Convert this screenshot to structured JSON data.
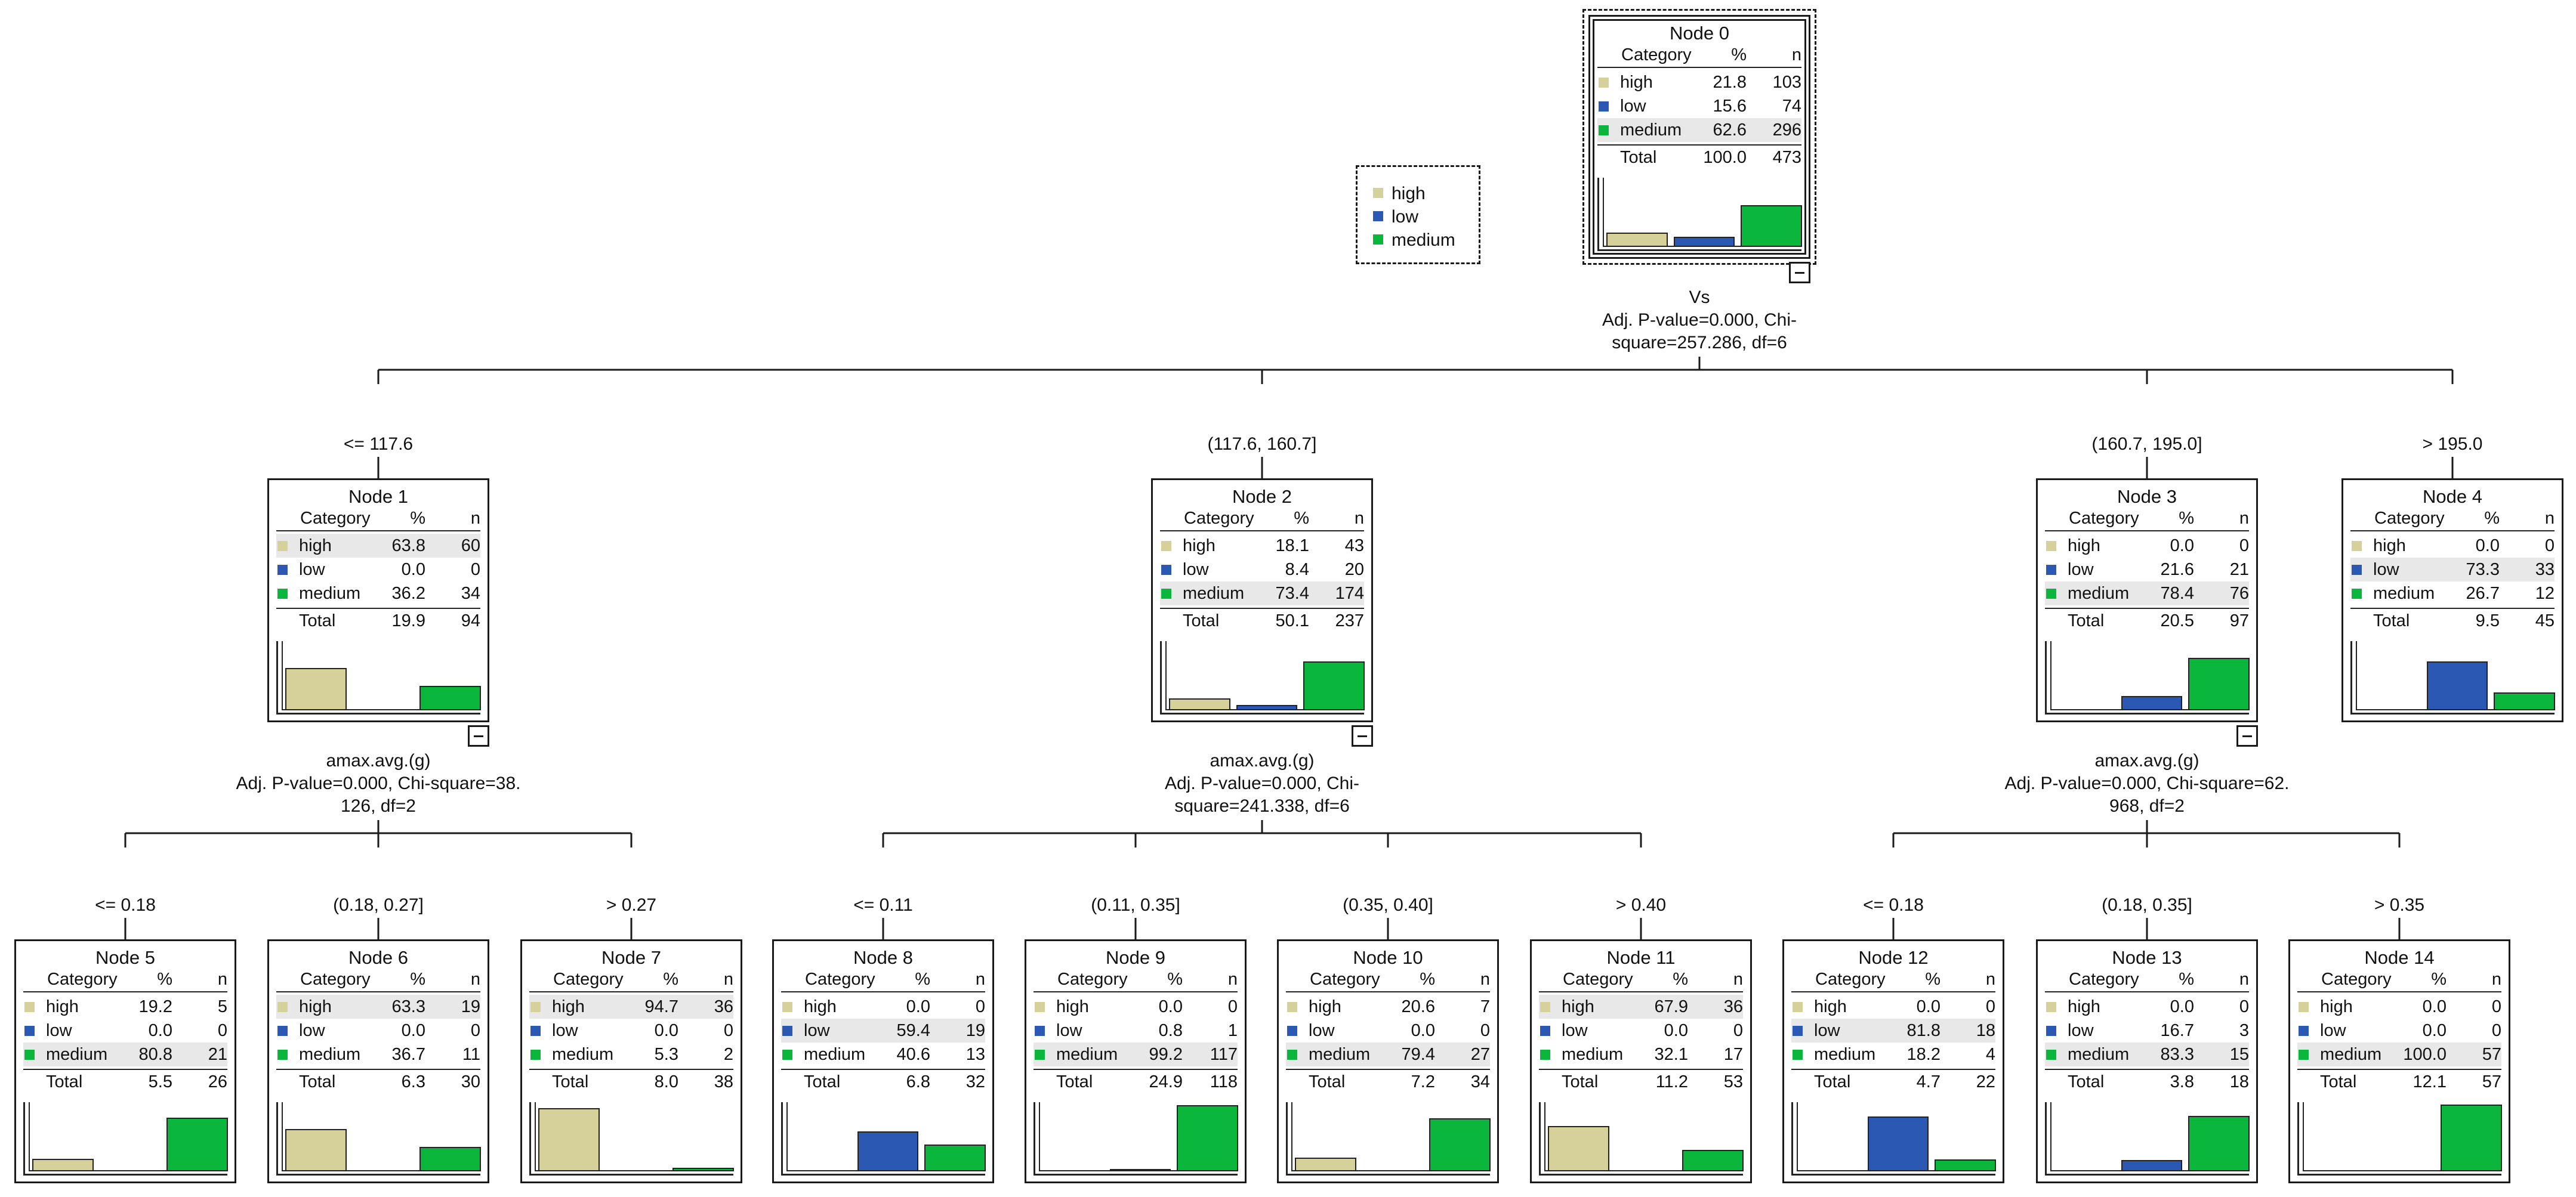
{
  "colors": {
    "high": "#d6d09a",
    "low": "#2b58b3",
    "medium": "#0bb63c"
  },
  "legend": {
    "items": [
      {
        "label": "high",
        "icon": "high-swatch-icon"
      },
      {
        "label": "low",
        "icon": "low-swatch-icon"
      },
      {
        "label": "medium",
        "icon": "medium-swatch-icon"
      }
    ]
  },
  "header": {
    "category": "Category",
    "percent": "%",
    "n": "n",
    "total": "Total"
  },
  "nodes": [
    {
      "id": 0,
      "title": "Node 0",
      "rows": [
        [
          "high",
          "21.8",
          "103"
        ],
        [
          "low",
          "15.6",
          "74"
        ],
        [
          "medium",
          "62.6",
          "296"
        ]
      ],
      "total": [
        "100.0",
        "473"
      ],
      "pct": [
        21.8,
        15.6,
        62.6
      ],
      "hl": 2,
      "split": [
        "Vs",
        "Adj. P-value=0.000, Chi-",
        "square=257.286, df=6"
      ]
    },
    {
      "id": 1,
      "title": "Node 1",
      "rows": [
        [
          "high",
          "63.8",
          "60"
        ],
        [
          "low",
          "0.0",
          "0"
        ],
        [
          "medium",
          "36.2",
          "34"
        ]
      ],
      "total": [
        "19.9",
        "94"
      ],
      "pct": [
        63.8,
        0.0,
        36.2
      ],
      "hl": 0,
      "branch": "<= 117.6",
      "split": [
        "amax.avg.(g)",
        "Adj. P-value=0.000, Chi-square=38.",
        "126, df=2"
      ]
    },
    {
      "id": 2,
      "title": "Node 2",
      "rows": [
        [
          "high",
          "18.1",
          "43"
        ],
        [
          "low",
          "8.4",
          "20"
        ],
        [
          "medium",
          "73.4",
          "174"
        ]
      ],
      "total": [
        "50.1",
        "237"
      ],
      "pct": [
        18.1,
        8.4,
        73.4
      ],
      "hl": 2,
      "branch": "(117.6, 160.7]",
      "split": [
        "amax.avg.(g)",
        "Adj. P-value=0.000, Chi-",
        "square=241.338, df=6"
      ]
    },
    {
      "id": 3,
      "title": "Node 3",
      "rows": [
        [
          "high",
          "0.0",
          "0"
        ],
        [
          "low",
          "21.6",
          "21"
        ],
        [
          "medium",
          "78.4",
          "76"
        ]
      ],
      "total": [
        "20.5",
        "97"
      ],
      "pct": [
        0.0,
        21.6,
        78.4
      ],
      "hl": 2,
      "branch": "(160.7, 195.0]",
      "split": [
        "amax.avg.(g)",
        "Adj. P-value=0.000, Chi-square=62.",
        "968, df=2"
      ]
    },
    {
      "id": 4,
      "title": "Node 4",
      "rows": [
        [
          "high",
          "0.0",
          "0"
        ],
        [
          "low",
          "73.3",
          "33"
        ],
        [
          "medium",
          "26.7",
          "12"
        ]
      ],
      "total": [
        "9.5",
        "45"
      ],
      "pct": [
        0.0,
        73.3,
        26.7
      ],
      "hl": 1,
      "branch": "> 195.0"
    },
    {
      "id": 5,
      "title": "Node 5",
      "rows": [
        [
          "high",
          "19.2",
          "5"
        ],
        [
          "low",
          "0.0",
          "0"
        ],
        [
          "medium",
          "80.8",
          "21"
        ]
      ],
      "total": [
        "5.5",
        "26"
      ],
      "pct": [
        19.2,
        0.0,
        80.8
      ],
      "hl": 2,
      "branch": "<= 0.18"
    },
    {
      "id": 6,
      "title": "Node 6",
      "rows": [
        [
          "high",
          "63.3",
          "19"
        ],
        [
          "low",
          "0.0",
          "0"
        ],
        [
          "medium",
          "36.7",
          "11"
        ]
      ],
      "total": [
        "6.3",
        "30"
      ],
      "pct": [
        63.3,
        0.0,
        36.7
      ],
      "hl": 0,
      "branch": "(0.18, 0.27]"
    },
    {
      "id": 7,
      "title": "Node 7",
      "rows": [
        [
          "high",
          "94.7",
          "36"
        ],
        [
          "low",
          "0.0",
          "0"
        ],
        [
          "medium",
          "5.3",
          "2"
        ]
      ],
      "total": [
        "8.0",
        "38"
      ],
      "pct": [
        94.7,
        0.0,
        5.3
      ],
      "hl": 0,
      "branch": "> 0.27"
    },
    {
      "id": 8,
      "title": "Node 8",
      "rows": [
        [
          "high",
          "0.0",
          "0"
        ],
        [
          "low",
          "59.4",
          "19"
        ],
        [
          "medium",
          "40.6",
          "13"
        ]
      ],
      "total": [
        "6.8",
        "32"
      ],
      "pct": [
        0.0,
        59.4,
        40.6
      ],
      "hl": 1,
      "branch": "<= 0.11"
    },
    {
      "id": 9,
      "title": "Node 9",
      "rows": [
        [
          "high",
          "0.0",
          "0"
        ],
        [
          "low",
          "0.8",
          "1"
        ],
        [
          "medium",
          "99.2",
          "117"
        ]
      ],
      "total": [
        "24.9",
        "118"
      ],
      "pct": [
        0.0,
        0.8,
        99.2
      ],
      "hl": 2,
      "branch": "(0.11, 0.35]"
    },
    {
      "id": 10,
      "title": "Node 10",
      "rows": [
        [
          "high",
          "20.6",
          "7"
        ],
        [
          "low",
          "0.0",
          "0"
        ],
        [
          "medium",
          "79.4",
          "27"
        ]
      ],
      "total": [
        "7.2",
        "34"
      ],
      "pct": [
        20.6,
        0.0,
        79.4
      ],
      "hl": 2,
      "branch": "(0.35, 0.40]"
    },
    {
      "id": 11,
      "title": "Node 11",
      "rows": [
        [
          "high",
          "67.9",
          "36"
        ],
        [
          "low",
          "0.0",
          "0"
        ],
        [
          "medium",
          "32.1",
          "17"
        ]
      ],
      "total": [
        "11.2",
        "53"
      ],
      "pct": [
        67.9,
        0.0,
        32.1
      ],
      "hl": 0,
      "branch": "> 0.40"
    },
    {
      "id": 12,
      "title": "Node 12",
      "rows": [
        [
          "high",
          "0.0",
          "0"
        ],
        [
          "low",
          "81.8",
          "18"
        ],
        [
          "medium",
          "18.2",
          "4"
        ]
      ],
      "total": [
        "4.7",
        "22"
      ],
      "pct": [
        0.0,
        81.8,
        18.2
      ],
      "hl": 1,
      "branch": "<= 0.18"
    },
    {
      "id": 13,
      "title": "Node 13",
      "rows": [
        [
          "high",
          "0.0",
          "0"
        ],
        [
          "low",
          "16.7",
          "3"
        ],
        [
          "medium",
          "83.3",
          "15"
        ]
      ],
      "total": [
        "3.8",
        "18"
      ],
      "pct": [
        0.0,
        16.7,
        83.3
      ],
      "hl": 2,
      "branch": "(0.18, 0.35]"
    },
    {
      "id": 14,
      "title": "Node 14",
      "rows": [
        [
          "high",
          "0.0",
          "0"
        ],
        [
          "low",
          "0.0",
          "0"
        ],
        [
          "medium",
          "100.0",
          "57"
        ]
      ],
      "total": [
        "12.1",
        "57"
      ],
      "pct": [
        0.0,
        0.0,
        100.0
      ],
      "hl": 2,
      "branch": "> 0.35"
    }
  ]
}
